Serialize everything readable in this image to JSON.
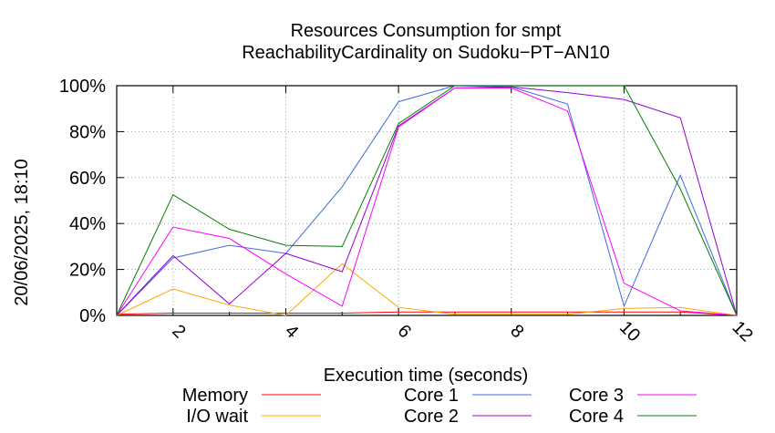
{
  "side_label": "20/06/2025, 18:10",
  "chart_data": {
    "type": "line",
    "title": [
      "Resources Consumption for smpt",
      "ReachabilityCardinality on Sudoku−PT−AN10"
    ],
    "xlabel": "Execution time (seconds)",
    "ylabel": "",
    "xlim": [
      1,
      12
    ],
    "ylim": [
      0,
      100
    ],
    "x_ticks": [
      2,
      4,
      6,
      8,
      10,
      12
    ],
    "y_ticks": [
      0,
      20,
      40,
      60,
      80,
      100
    ],
    "y_tick_labels": [
      "0%",
      "20%",
      "40%",
      "60%",
      "80%",
      "100%"
    ],
    "grid": true,
    "legend_position": "bottom",
    "x": [
      1,
      2,
      3,
      4,
      5,
      6,
      7,
      8,
      9,
      10,
      11,
      12
    ],
    "series": [
      {
        "name": "Memory",
        "color": "#ff0000",
        "values": [
          0.5,
          1,
          1,
          1,
          1,
          1.5,
          1.5,
          1.5,
          1.5,
          1.5,
          1.5,
          0
        ]
      },
      {
        "name": "I/O wait",
        "color": "#ffa500",
        "values": [
          0,
          11.5,
          4.5,
          0,
          22.5,
          3.5,
          0.5,
          0.5,
          0.5,
          3,
          3.5,
          0
        ]
      },
      {
        "name": "Core 1",
        "color": "#4169e1",
        "values": [
          0,
          25,
          30.5,
          27,
          56,
          93,
          100,
          99.5,
          92,
          4,
          61,
          0
        ]
      },
      {
        "name": "Core 2",
        "color": "#9400d3",
        "values": [
          0,
          26,
          5,
          27,
          19,
          82.5,
          99,
          99.5,
          97,
          94,
          86,
          0
        ]
      },
      {
        "name": "Core 3",
        "color": "#ff00ff",
        "values": [
          0,
          38.5,
          33.5,
          18,
          4,
          82,
          99,
          99,
          89,
          14,
          2,
          0
        ]
      },
      {
        "name": "Core 4",
        "color": "#008000",
        "values": [
          0,
          52.5,
          37.5,
          30.5,
          30,
          83.5,
          100,
          100,
          100,
          100,
          55,
          0
        ]
      }
    ]
  }
}
